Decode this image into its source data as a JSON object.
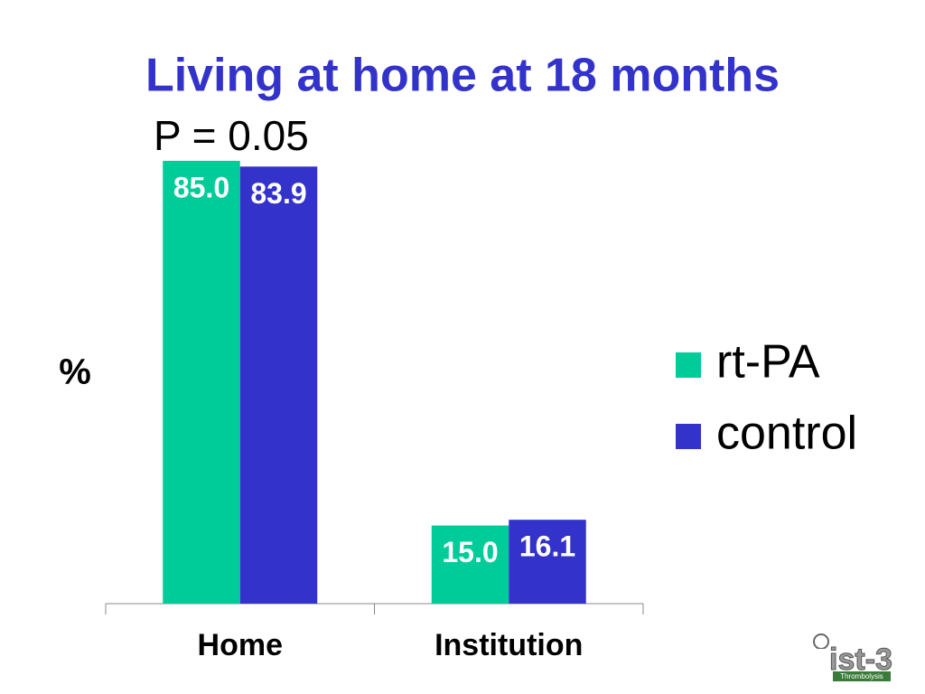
{
  "chart_data": {
    "type": "bar",
    "title": "Living at home at 18 months",
    "annotation": "P = 0.05",
    "y_label": "%",
    "categories": [
      "Home",
      "Institution"
    ],
    "series": [
      {
        "name": "rt-PA",
        "color": "#00cc99",
        "values": [
          85.0,
          15.0
        ],
        "value_labels": [
          "85.0",
          "15.0"
        ]
      },
      {
        "name": "control",
        "color": "#3333cc",
        "values": [
          83.9,
          16.1
        ],
        "value_labels": [
          "83.9",
          "16.1"
        ]
      }
    ],
    "ylim": [
      0,
      100
    ],
    "legend": "right"
  },
  "logo": {
    "text": "ist-3",
    "subtext": "Thrombolysis"
  }
}
